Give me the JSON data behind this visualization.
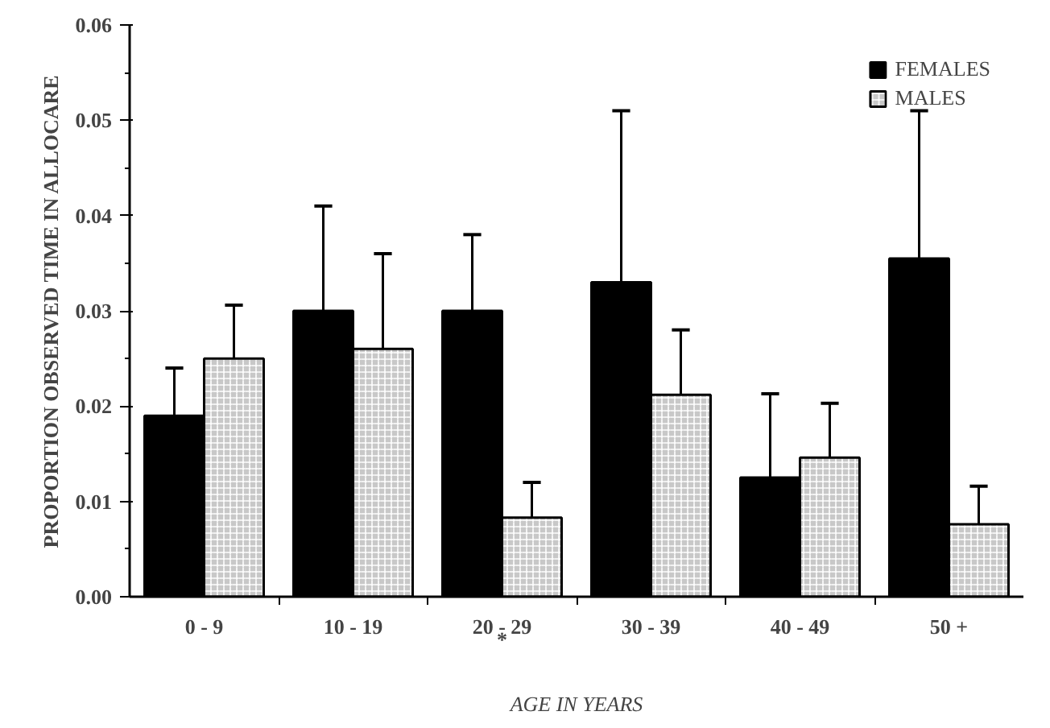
{
  "chart_data": {
    "type": "bar",
    "xlabel": "AGE IN YEARS",
    "ylabel": "PROPORTION OBSERVED TIME IN ALLOCARE",
    "categories": [
      "0 - 9",
      "10 - 19",
      "20 - 29",
      "30 - 39",
      "40 - 49",
      "50 +"
    ],
    "series": [
      {
        "name": "FEMALES",
        "color": "#000000",
        "values": [
          0.019,
          0.03,
          0.03,
          0.033,
          0.0125,
          0.0355
        ],
        "errors": [
          [
            0.019,
            0.024
          ],
          [
            0.03,
            0.041
          ],
          [
            0.03,
            0.038
          ],
          [
            0.033,
            0.051
          ],
          [
            0.0125,
            0.0213
          ],
          [
            0.0355,
            0.051
          ]
        ]
      },
      {
        "name": "MALES",
        "color": "#c8c8c8",
        "values": [
          0.025,
          0.026,
          0.0083,
          0.0212,
          0.0146,
          0.0076
        ],
        "errors": [
          [
            0.025,
            0.0306
          ],
          [
            0.026,
            0.036
          ],
          [
            0.0083,
            0.012
          ],
          [
            0.0212,
            0.028
          ],
          [
            0.0146,
            0.0203
          ],
          [
            0.0076,
            0.0116
          ]
        ]
      }
    ],
    "ylim": [
      0,
      0.06
    ],
    "yticks": [
      {
        "value": 0,
        "label": "0.00"
      },
      {
        "value": 0.01,
        "label": "0.01"
      },
      {
        "value": 0.02,
        "label": "0.02"
      },
      {
        "value": 0.03,
        "label": "0.03"
      },
      {
        "value": 0.04,
        "label": "0.04"
      },
      {
        "value": 0.05,
        "label": "0.05"
      },
      {
        "value": 0.06,
        "label": "0.06"
      }
    ],
    "annotations": [
      "*"
    ],
    "grid": false,
    "legend": "top right"
  }
}
